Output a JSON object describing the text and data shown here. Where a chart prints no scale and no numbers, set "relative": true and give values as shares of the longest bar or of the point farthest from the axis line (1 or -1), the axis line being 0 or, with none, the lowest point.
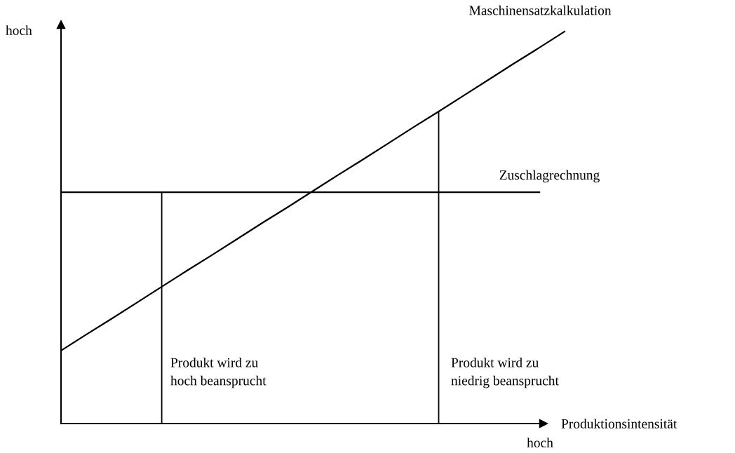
{
  "chart_data": {
    "type": "line",
    "relative": true,
    "ylabel": "hoch",
    "xlabel": "Produktionsintensität",
    "categories": [
      null,
      null,
      null,
      null,
      null,
      null,
      null,
      null,
      null,
      null,
      null,
      null,
      null,
      null,
      null,
      null,
      null,
      null,
      null,
      null,
      null
    ],
    "series": [
      {
        "name": "Maschinensatzkalkulation",
        "color": "#000000",
        "values": [
          0.186,
          0.227,
          0.267,
          0.308,
          0.349,
          0.39,
          0.43,
          0.471,
          0.512,
          0.552,
          0.593,
          0.634,
          0.674,
          0.715,
          0.756,
          0.796,
          0.837,
          0.878,
          0.919,
          0.959,
          1
        ]
      },
      {
        "name": "Zuschlagrechnung",
        "color": "#000000",
        "values": [
          0.59,
          0.59,
          0.59,
          0.59,
          0.59,
          0.59,
          0.59,
          0.59,
          0.59,
          0.59,
          0.59,
          0.59,
          0.59,
          0.59,
          0.59,
          0.59,
          0.59,
          0.59,
          0.59,
          0.59,
          null
        ]
      }
    ],
    "annotations": [
      "Produkt wird zu\nhoch beansprucht",
      "Produkt wird zu\nniedrig beansprucht",
      "hoch"
    ],
    "grid": false,
    "legend": false,
    "marker": "none",
    "line_style": "solid"
  }
}
